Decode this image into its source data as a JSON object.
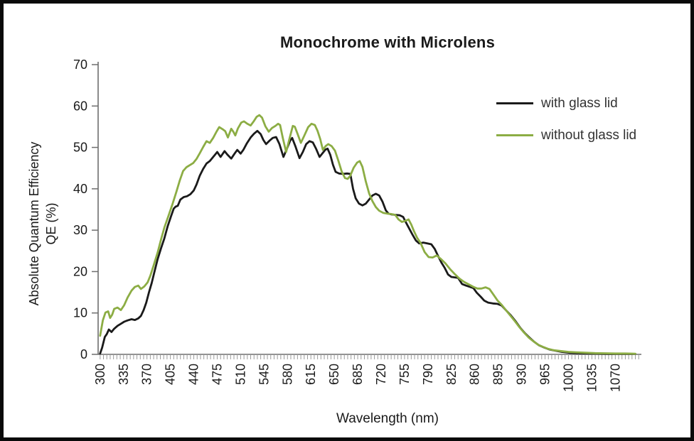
{
  "title": "Monochrome with Microlens",
  "colors": {
    "with_glass_lid": "#1a1a1a",
    "without_glass_lid": "#8cad44",
    "axis_line": "#6e6e6e",
    "minor_tick": "#9a9a9a",
    "text": "#1a1a1a"
  },
  "chart_data": {
    "type": "line",
    "title": "Monochrome with Microlens",
    "xlabel": "Wavelength (nm)",
    "ylabel": "Absolute Quantum Efficiency QE (%)",
    "ylabel_line1": "Absolute Quantum Efficiency",
    "ylabel_line2": "QE (%)",
    "xlim": [
      297,
      1109
    ],
    "ylim": [
      0,
      70
    ],
    "y_ticks": [
      0,
      10,
      20,
      30,
      40,
      50,
      60,
      70
    ],
    "x_tick_labels": [
      300,
      335,
      370,
      405,
      440,
      475,
      510,
      545,
      580,
      615,
      650,
      685,
      720,
      755,
      790,
      825,
      860,
      895,
      930,
      965,
      1000,
      1035,
      1070
    ],
    "x_minor_tick_step": 5,
    "x_minor_tick_start": 300,
    "x_minor_tick_end": 1105,
    "grid": false,
    "legend_position": "upper right",
    "series": [
      {
        "name": "with glass lid",
        "color": "#1a1a1a",
        "points": [
          [
            300,
            0.2
          ],
          [
            303,
            1.6
          ],
          [
            307,
            4.2
          ],
          [
            310,
            4.9
          ],
          [
            313,
            6.0
          ],
          [
            317,
            5.4
          ],
          [
            321,
            6.2
          ],
          [
            326,
            6.9
          ],
          [
            331,
            7.4
          ],
          [
            336,
            7.9
          ],
          [
            341,
            8.2
          ],
          [
            347,
            8.5
          ],
          [
            352,
            8.3
          ],
          [
            357,
            8.7
          ],
          [
            361,
            9.3
          ],
          [
            365,
            10.7
          ],
          [
            369,
            12.5
          ],
          [
            373,
            15.0
          ],
          [
            377,
            17.2
          ],
          [
            381,
            19.8
          ],
          [
            386,
            23.0
          ],
          [
            391,
            25.6
          ],
          [
            396,
            28.0
          ],
          [
            401,
            31.0
          ],
          [
            406,
            33.4
          ],
          [
            410,
            35.2
          ],
          [
            413,
            35.7
          ],
          [
            416,
            35.9
          ],
          [
            420,
            37.4
          ],
          [
            425,
            38.0
          ],
          [
            430,
            38.2
          ],
          [
            435,
            38.7
          ],
          [
            440,
            39.6
          ],
          [
            444,
            41.0
          ],
          [
            449,
            43.2
          ],
          [
            454,
            44.8
          ],
          [
            459,
            46.1
          ],
          [
            464,
            46.7
          ],
          [
            468,
            47.5
          ],
          [
            472,
            48.3
          ],
          [
            475,
            48.9
          ],
          [
            480,
            47.7
          ],
          [
            486,
            49.1
          ],
          [
            490,
            48.3
          ],
          [
            496,
            47.3
          ],
          [
            501,
            48.5
          ],
          [
            505,
            49.4
          ],
          [
            510,
            48.5
          ],
          [
            514,
            49.4
          ],
          [
            519,
            50.9
          ],
          [
            525,
            52.4
          ],
          [
            530,
            53.3
          ],
          [
            535,
            54.0
          ],
          [
            540,
            53.2
          ],
          [
            544,
            51.8
          ],
          [
            548,
            50.8
          ],
          [
            553,
            51.6
          ],
          [
            558,
            52.3
          ],
          [
            563,
            52.5
          ],
          [
            568,
            50.8
          ],
          [
            574,
            47.7
          ],
          [
            579,
            49.6
          ],
          [
            584,
            51.6
          ],
          [
            587,
            52.3
          ],
          [
            592,
            50.2
          ],
          [
            598,
            47.4
          ],
          [
            603,
            48.9
          ],
          [
            608,
            50.8
          ],
          [
            613,
            51.5
          ],
          [
            618,
            51.2
          ],
          [
            623,
            49.6
          ],
          [
            628,
            47.7
          ],
          [
            633,
            48.7
          ],
          [
            637,
            49.5
          ],
          [
            640,
            49.7
          ],
          [
            644,
            48.2
          ],
          [
            648,
            45.8
          ],
          [
            652,
            44.1
          ],
          [
            657,
            43.7
          ],
          [
            663,
            43.6
          ],
          [
            669,
            43.7
          ],
          [
            674,
            43.6
          ],
          [
            678,
            40.0
          ],
          [
            682,
            37.7
          ],
          [
            687,
            36.4
          ],
          [
            692,
            36.0
          ],
          [
            697,
            36.4
          ],
          [
            702,
            37.4
          ],
          [
            707,
            38.4
          ],
          [
            712,
            38.8
          ],
          [
            717,
            38.4
          ],
          [
            722,
            36.9
          ],
          [
            727,
            34.8
          ],
          [
            731,
            34.0
          ],
          [
            736,
            33.8
          ],
          [
            742,
            33.7
          ],
          [
            748,
            33.6
          ],
          [
            753,
            33.2
          ],
          [
            757,
            31.9
          ],
          [
            762,
            30.4
          ],
          [
            767,
            28.9
          ],
          [
            772,
            27.5
          ],
          [
            777,
            26.8
          ],
          [
            783,
            27.0
          ],
          [
            789,
            26.8
          ],
          [
            795,
            26.6
          ],
          [
            800,
            25.5
          ],
          [
            805,
            23.8
          ],
          [
            810,
            22.2
          ],
          [
            815,
            20.9
          ],
          [
            820,
            19.3
          ],
          [
            825,
            18.7
          ],
          [
            830,
            18.6
          ],
          [
            835,
            18.5
          ],
          [
            841,
            17.0
          ],
          [
            847,
            16.6
          ],
          [
            853,
            16.3
          ],
          [
            858,
            16.0
          ],
          [
            863,
            14.9
          ],
          [
            869,
            13.9
          ],
          [
            874,
            13.0
          ],
          [
            880,
            12.5
          ],
          [
            887,
            12.3
          ],
          [
            894,
            12.2
          ],
          [
            900,
            11.8
          ],
          [
            907,
            10.6
          ],
          [
            914,
            9.4
          ],
          [
            921,
            8.0
          ],
          [
            928,
            6.4
          ],
          [
            935,
            5.1
          ],
          [
            942,
            4.0
          ],
          [
            949,
            3.0
          ],
          [
            956,
            2.2
          ],
          [
            963,
            1.7
          ],
          [
            971,
            1.2
          ],
          [
            980,
            0.9
          ],
          [
            990,
            0.6
          ],
          [
            1002,
            0.4
          ],
          [
            1015,
            0.3
          ],
          [
            1030,
            0.2
          ],
          [
            1045,
            0.15
          ],
          [
            1060,
            0.1
          ],
          [
            1080,
            0.1
          ],
          [
            1100,
            0.1
          ]
        ]
      },
      {
        "name": "without glass lid",
        "color": "#8cad44",
        "points": [
          [
            300,
            4.5
          ],
          [
            304,
            8.2
          ],
          [
            308,
            10.1
          ],
          [
            312,
            10.4
          ],
          [
            315,
            8.8
          ],
          [
            318,
            9.6
          ],
          [
            321,
            11.0
          ],
          [
            326,
            11.3
          ],
          [
            331,
            10.7
          ],
          [
            336,
            11.9
          ],
          [
            341,
            13.7
          ],
          [
            347,
            15.4
          ],
          [
            352,
            16.3
          ],
          [
            357,
            16.6
          ],
          [
            361,
            15.8
          ],
          [
            366,
            16.4
          ],
          [
            371,
            17.4
          ],
          [
            375,
            19.0
          ],
          [
            380,
            21.5
          ],
          [
            386,
            24.6
          ],
          [
            391,
            27.7
          ],
          [
            396,
            30.6
          ],
          [
            402,
            33.4
          ],
          [
            408,
            36.2
          ],
          [
            414,
            39.3
          ],
          [
            419,
            42.0
          ],
          [
            424,
            44.3
          ],
          [
            429,
            45.2
          ],
          [
            434,
            45.7
          ],
          [
            439,
            46.2
          ],
          [
            444,
            47.2
          ],
          [
            449,
            48.6
          ],
          [
            454,
            50.1
          ],
          [
            459,
            51.5
          ],
          [
            464,
            51.1
          ],
          [
            469,
            52.3
          ],
          [
            474,
            53.8
          ],
          [
            478,
            54.9
          ],
          [
            483,
            54.4
          ],
          [
            487,
            53.9
          ],
          [
            491,
            52.4
          ],
          [
            496,
            54.5
          ],
          [
            499,
            53.8
          ],
          [
            502,
            52.9
          ],
          [
            506,
            54.6
          ],
          [
            511,
            56.0
          ],
          [
            515,
            56.3
          ],
          [
            520,
            55.7
          ],
          [
            525,
            55.3
          ],
          [
            530,
            56.4
          ],
          [
            534,
            57.4
          ],
          [
            538,
            57.8
          ],
          [
            542,
            57.2
          ],
          [
            547,
            55.1
          ],
          [
            552,
            53.8
          ],
          [
            557,
            54.7
          ],
          [
            562,
            55.2
          ],
          [
            566,
            55.7
          ],
          [
            569,
            55.4
          ],
          [
            573,
            52.3
          ],
          [
            578,
            48.9
          ],
          [
            583,
            52.1
          ],
          [
            588,
            55.2
          ],
          [
            591,
            55.0
          ],
          [
            595,
            53.3
          ],
          [
            600,
            51.1
          ],
          [
            605,
            52.8
          ],
          [
            611,
            54.9
          ],
          [
            616,
            55.7
          ],
          [
            621,
            55.4
          ],
          [
            625,
            54.0
          ],
          [
            629,
            52.0
          ],
          [
            633,
            49.4
          ],
          [
            637,
            50.3
          ],
          [
            641,
            50.8
          ],
          [
            646,
            50.3
          ],
          [
            651,
            49.2
          ],
          [
            656,
            46.8
          ],
          [
            661,
            44.2
          ],
          [
            666,
            42.6
          ],
          [
            670,
            42.4
          ],
          [
            674,
            43.2
          ],
          [
            679,
            45.1
          ],
          [
            684,
            46.3
          ],
          [
            688,
            46.7
          ],
          [
            692,
            45.3
          ],
          [
            697,
            41.8
          ],
          [
            702,
            38.9
          ],
          [
            707,
            37.0
          ],
          [
            712,
            35.6
          ],
          [
            717,
            34.7
          ],
          [
            723,
            34.2
          ],
          [
            729,
            34.0
          ],
          [
            735,
            33.9
          ],
          [
            741,
            33.7
          ],
          [
            746,
            32.6
          ],
          [
            751,
            32.0
          ],
          [
            757,
            32.3
          ],
          [
            761,
            32.6
          ],
          [
            765,
            31.4
          ],
          [
            769,
            29.8
          ],
          [
            774,
            28.1
          ],
          [
            779,
            26.9
          ],
          [
            785,
            24.7
          ],
          [
            791,
            23.5
          ],
          [
            797,
            23.4
          ],
          [
            803,
            23.9
          ],
          [
            809,
            23.1
          ],
          [
            816,
            22.0
          ],
          [
            823,
            20.6
          ],
          [
            830,
            19.4
          ],
          [
            837,
            18.3
          ],
          [
            844,
            17.5
          ],
          [
            851,
            16.9
          ],
          [
            858,
            16.3
          ],
          [
            864,
            15.9
          ],
          [
            870,
            15.9
          ],
          [
            876,
            16.2
          ],
          [
            882,
            15.8
          ],
          [
            888,
            14.4
          ],
          [
            894,
            13.0
          ],
          [
            900,
            12.0
          ],
          [
            906,
            10.8
          ],
          [
            913,
            9.4
          ],
          [
            920,
            8.0
          ],
          [
            927,
            6.5
          ],
          [
            934,
            5.2
          ],
          [
            941,
            4.0
          ],
          [
            948,
            3.1
          ],
          [
            955,
            2.3
          ],
          [
            962,
            1.8
          ],
          [
            970,
            1.3
          ],
          [
            978,
            1.0
          ],
          [
            988,
            0.8
          ],
          [
            1000,
            0.6
          ],
          [
            1012,
            0.5
          ],
          [
            1025,
            0.4
          ],
          [
            1040,
            0.3
          ],
          [
            1055,
            0.25
          ],
          [
            1070,
            0.2
          ],
          [
            1085,
            0.2
          ],
          [
            1100,
            0.15
          ]
        ]
      }
    ]
  }
}
